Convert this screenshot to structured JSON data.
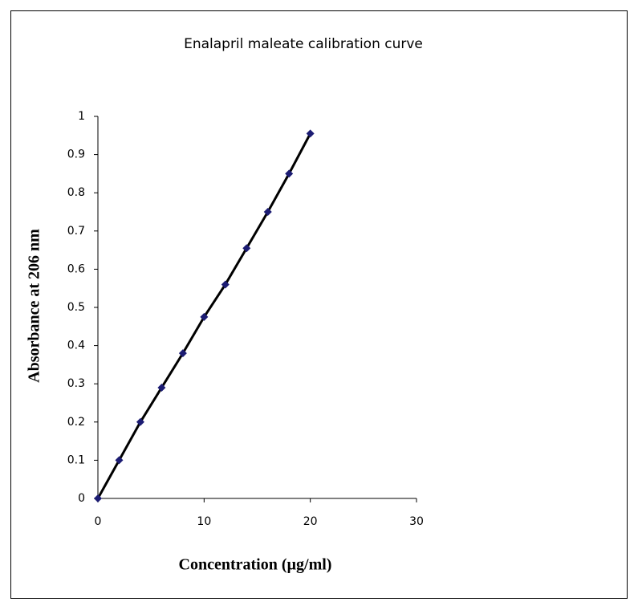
{
  "chart_data": {
    "type": "line",
    "title": "Enalapril maleate calibration curve",
    "x_label": "Concentration (µg/ml)",
    "y_label": "Absorbance at 206 nm",
    "x": [
      0,
      2,
      4,
      6,
      8,
      10,
      12,
      14,
      16,
      18,
      20
    ],
    "values": [
      0,
      0.1,
      0.2,
      0.29,
      0.38,
      0.475,
      0.56,
      0.655,
      0.75,
      0.85,
      0.955
    ],
    "marker_color": "#1c1c73",
    "line_color": "#000000",
    "xlim": [
      0,
      30
    ],
    "xticks": [
      0,
      10,
      20,
      30
    ],
    "ylim": [
      0,
      1
    ],
    "yticks": [
      0,
      0.1,
      0.2,
      0.3,
      0.4,
      0.5,
      0.6,
      0.7,
      0.8,
      0.9,
      1
    ]
  }
}
